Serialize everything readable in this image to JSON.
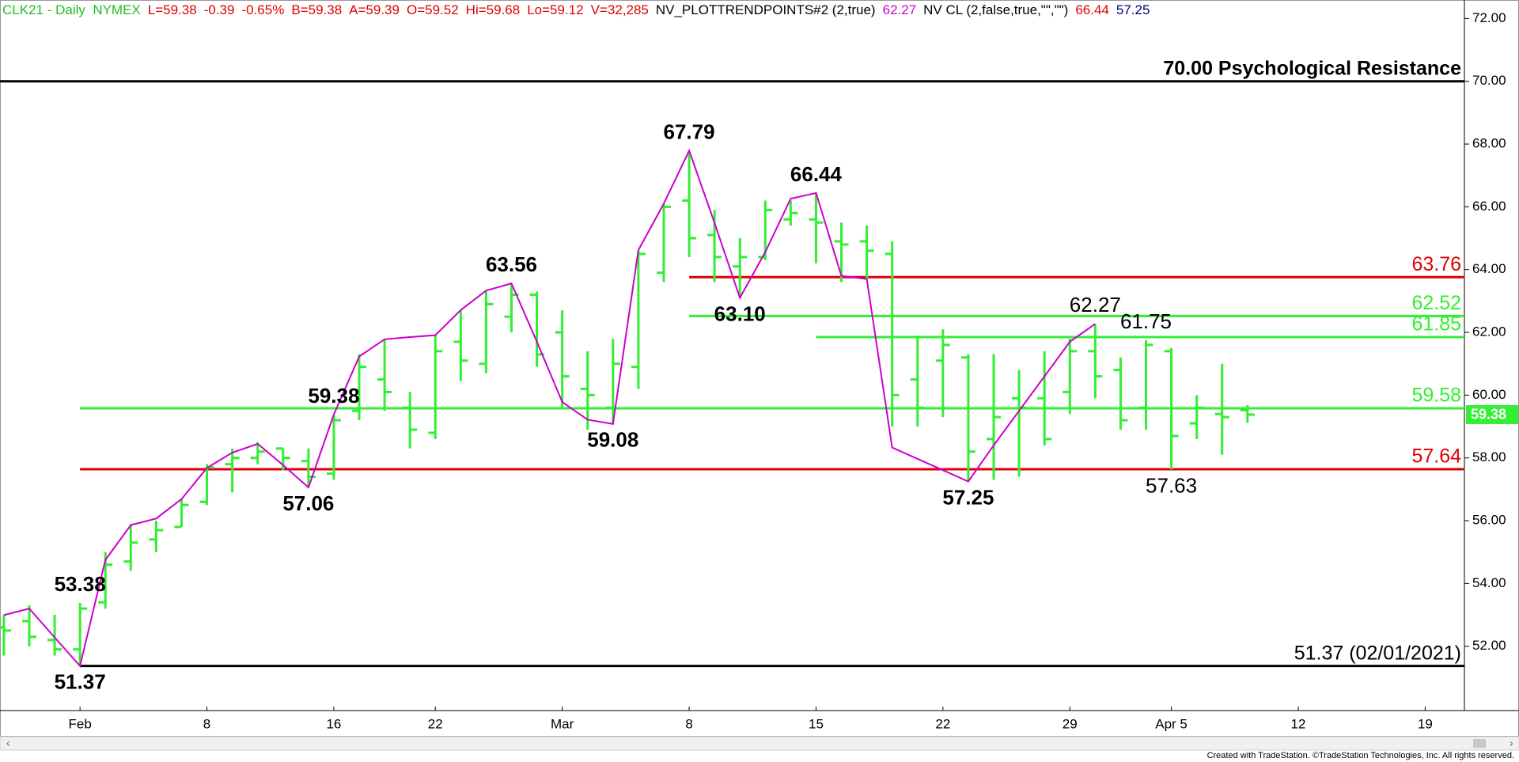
{
  "header": [
    {
      "text": "CLK21 - Daily  NYMEX",
      "color": "#22bb22"
    },
    {
      "text": "L=59.38",
      "color": "#dd0000"
    },
    {
      "text": "-0.39",
      "color": "#dd0000"
    },
    {
      "text": "-0.65%",
      "color": "#dd0000"
    },
    {
      "text": "B=59.38",
      "color": "#dd0000"
    },
    {
      "text": "A=59.39",
      "color": "#dd0000"
    },
    {
      "text": "O=59.52",
      "color": "#dd0000"
    },
    {
      "text": "Hi=59.68",
      "color": "#dd0000"
    },
    {
      "text": "Lo=59.12",
      "color": "#dd0000"
    },
    {
      "text": "V=32,285",
      "color": "#dd0000"
    },
    {
      "text": "NV_PLOTTRENDPOINTS#2 (2,true)",
      "color": "#000000"
    },
    {
      "text": "62.27",
      "color": "#cc00cc"
    },
    {
      "text": "NV CL (2,false,true,\"\",\"\")",
      "color": "#000000"
    },
    {
      "text": "66.44",
      "color": "#dd0000"
    },
    {
      "text": "57.25",
      "color": "#000080"
    }
  ],
  "footer": "Created with TradeStation. ©TradeStation Technologies, Inc. All rights reserved.",
  "chart_data": {
    "type": "ohlc",
    "categories": [
      null,
      null,
      null,
      "Feb",
      null,
      null,
      null,
      null,
      "8",
      null,
      null,
      null,
      null,
      "16",
      null,
      null,
      null,
      "22",
      null,
      null,
      null,
      null,
      "Mar",
      null,
      null,
      null,
      null,
      "8",
      null,
      null,
      null,
      null,
      "15",
      null,
      null,
      null,
      null,
      "22",
      null,
      null,
      null,
      null,
      "29",
      null,
      null,
      null,
      "Apr 5",
      null,
      null,
      null,
      null,
      "12",
      null,
      null,
      null,
      null,
      "19",
      null
    ],
    "ohlc": {
      "color": "#33ee33",
      "open": [
        52.6,
        52.8,
        52.2,
        51.9,
        53.4,
        54.7,
        55.4,
        55.8,
        56.6,
        57.8,
        58.0,
        58.3,
        57.9,
        57.5,
        59.5,
        60.5,
        59.6,
        58.8,
        61.7,
        61.0,
        62.5,
        63.2,
        62.0,
        60.2,
        59.6,
        60.9,
        63.9,
        66.2,
        65.1,
        64.1,
        64.4,
        65.6,
        65.6,
        64.9,
        64.9,
        64.5,
        60.5,
        61.1,
        61.2,
        58.6,
        59.9,
        59.9,
        60.1,
        61.4,
        60.8,
        59.6,
        61.4,
        59.1,
        59.4,
        59.52,
        null,
        null,
        null,
        null,
        null,
        null,
        null,
        null
      ],
      "high": [
        53.0,
        53.3,
        53.0,
        53.38,
        55.0,
        55.9,
        56.0,
        56.7,
        57.8,
        58.3,
        58.5,
        58.3,
        58.3,
        59.38,
        61.3,
        61.8,
        60.1,
        61.9,
        62.7,
        63.3,
        63.56,
        63.3,
        62.7,
        61.4,
        61.8,
        64.6,
        66.1,
        67.79,
        65.9,
        65.0,
        66.2,
        66.2,
        66.44,
        65.5,
        65.4,
        64.9,
        61.9,
        62.1,
        61.3,
        61.3,
        60.8,
        61.4,
        61.8,
        62.27,
        61.2,
        61.75,
        61.5,
        60.0,
        61.0,
        59.68,
        null,
        null,
        null,
        null,
        null,
        null,
        null,
        null
      ],
      "low": [
        51.7,
        52.0,
        51.7,
        51.37,
        53.2,
        54.4,
        55.0,
        55.8,
        56.5,
        56.9,
        57.8,
        57.6,
        57.06,
        57.3,
        59.2,
        59.5,
        58.3,
        58.6,
        60.45,
        60.7,
        62.0,
        60.9,
        59.6,
        58.9,
        59.08,
        60.2,
        63.6,
        64.4,
        63.6,
        63.1,
        64.3,
        65.4,
        64.2,
        63.6,
        63.7,
        59.0,
        59.0,
        59.3,
        57.25,
        57.3,
        57.4,
        58.4,
        59.4,
        59.9,
        58.9,
        58.9,
        57.63,
        58.6,
        58.1,
        59.12,
        null,
        null,
        null,
        null,
        null,
        null,
        null,
        null
      ],
      "close": [
        52.5,
        52.3,
        51.9,
        53.2,
        54.6,
        55.3,
        55.7,
        56.5,
        57.7,
        58.0,
        58.2,
        58.0,
        57.4,
        59.2,
        60.9,
        60.1,
        58.9,
        61.4,
        61.1,
        62.9,
        63.2,
        61.3,
        60.6,
        60.0,
        61.0,
        64.5,
        66.0,
        65.0,
        64.4,
        64.4,
        65.9,
        65.8,
        65.5,
        64.8,
        64.6,
        60.0,
        59.6,
        61.6,
        58.2,
        59.3,
        59.6,
        58.6,
        61.4,
        60.6,
        59.2,
        61.6,
        58.7,
        59.6,
        59.3,
        59.38,
        null,
        null,
        null,
        null,
        null,
        null,
        null,
        null
      ]
    },
    "trend": {
      "color": "#cc00cc",
      "values": [
        52.99,
        53.2,
        52.28,
        51.37,
        54.75,
        55.86,
        56.07,
        56.69,
        57.68,
        58.17,
        58.45,
        57.77,
        57.06,
        59.38,
        61.23,
        61.78,
        61.85,
        61.91,
        62.71,
        63.33,
        63.56,
        61.7,
        59.78,
        59.22,
        59.08,
        64.62,
        66.1,
        67.79,
        65.49,
        63.1,
        64.56,
        66.26,
        66.44,
        63.8,
        63.7,
        58.33,
        57.97,
        57.61,
        57.25,
        58.4,
        59.5,
        60.6,
        61.7,
        62.27,
        null,
        null,
        null,
        null,
        null,
        null,
        null,
        null,
        null,
        null,
        null,
        null,
        null,
        null
      ]
    },
    "levels": [
      {
        "value": 70,
        "label": "70.00 Psychological Resistance",
        "color": "#000000",
        "bold": true
      },
      {
        "value": 63.76,
        "label": "63.76",
        "color": "#dd0000",
        "from": 27
      },
      {
        "value": 62.52,
        "label": "62.52",
        "color": "#33ee33",
        "from": 27
      },
      {
        "value": 61.85,
        "label": "61.85",
        "color": "#33ee33",
        "from": 32
      },
      {
        "value": 59.58,
        "label": "59.58",
        "color": "#33ee33",
        "from": 3
      },
      {
        "value": 57.64,
        "label": "57.64",
        "color": "#dd0000",
        "from": 3
      },
      {
        "value": 51.37,
        "label": "51.37 (02/01/2021)",
        "color": "#000000",
        "from": 3
      }
    ],
    "annotations": [
      {
        "value": 53.38,
        "label": "53.38",
        "bold": true
      },
      {
        "value": 51.37,
        "label": "51.37",
        "bold": true
      },
      {
        "value": 59.38,
        "label": "59.38",
        "bold": true
      },
      {
        "value": 57.06,
        "label": "57.06",
        "bold": true
      },
      {
        "value": 63.56,
        "label": "63.56",
        "bold": true
      },
      {
        "value": 59.08,
        "label": "59.08",
        "bold": true
      },
      {
        "value": 67.79,
        "label": "67.79",
        "bold": true
      },
      {
        "value": 63.1,
        "label": "63.10",
        "bold": true
      },
      {
        "value": 66.44,
        "label": "66.44",
        "bold": true
      },
      {
        "value": 57.25,
        "label": "57.25",
        "bold": true
      },
      {
        "value": 62.27,
        "label": "62.27",
        "bold": false
      },
      {
        "value": 61.75,
        "label": "61.75",
        "bold": false
      },
      {
        "value": 57.63,
        "label": "57.63",
        "bold": false
      }
    ],
    "ylim": [
      49.95,
      72.59
    ],
    "yticks": [
      {
        "value": 52,
        "label": "52.00"
      },
      {
        "value": 54,
        "label": "54.00"
      },
      {
        "value": 56,
        "label": "56.00"
      },
      {
        "value": 58,
        "label": "58.00"
      },
      {
        "value": 60,
        "label": "60.00"
      },
      {
        "value": 62,
        "label": "62.00"
      },
      {
        "value": 64,
        "label": "64.00"
      },
      {
        "value": 66,
        "label": "66.00"
      },
      {
        "value": 68,
        "label": "68.00"
      },
      {
        "value": 70,
        "label": "70.00"
      },
      {
        "value": 72,
        "label": "72.00"
      }
    ],
    "tag_color": "#33ee33"
  }
}
